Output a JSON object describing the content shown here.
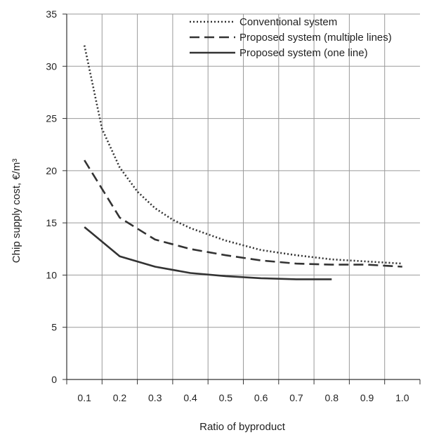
{
  "chart_data": {
    "type": "line",
    "xlabel": "Ratio of byproduct",
    "ylabel": "Chip supply cost, €/m³",
    "xlim": [
      0.05,
      1.05
    ],
    "ylim": [
      0,
      35
    ],
    "x_ticks": [
      "0.1",
      "0.2",
      "0.3",
      "0.4",
      "0.5",
      "0.6",
      "0.7",
      "0.8",
      "0.9",
      "1.0"
    ],
    "y_ticks": [
      "0",
      "5",
      "10",
      "15",
      "20",
      "25",
      "30",
      "35"
    ],
    "grid": true,
    "legend_position": "top-right",
    "series": [
      {
        "name": "Conventional system",
        "style": "dotted",
        "color": "#333333",
        "x": [
          0.1,
          0.15,
          0.2,
          0.25,
          0.3,
          0.35,
          0.4,
          0.5,
          0.6,
          0.7,
          0.8,
          0.9,
          1.0
        ],
        "values": [
          32.0,
          24.0,
          20.3,
          18.0,
          16.4,
          15.3,
          14.5,
          13.3,
          12.4,
          11.9,
          11.5,
          11.3,
          11.1
        ]
      },
      {
        "name": "Proposed system (multiple lines)",
        "style": "dashed",
        "color": "#333333",
        "x": [
          0.1,
          0.2,
          0.3,
          0.4,
          0.5,
          0.6,
          0.7,
          0.8,
          0.9,
          1.0
        ],
        "values": [
          21.0,
          15.5,
          13.4,
          12.5,
          11.9,
          11.4,
          11.1,
          11.0,
          11.0,
          10.8
        ]
      },
      {
        "name": "Proposed system (one line)",
        "style": "solid",
        "color": "#333333",
        "x": [
          0.1,
          0.2,
          0.3,
          0.4,
          0.5,
          0.6,
          0.7,
          0.8
        ],
        "values": [
          14.6,
          11.8,
          10.8,
          10.2,
          9.9,
          9.7,
          9.6,
          9.6
        ]
      }
    ]
  }
}
